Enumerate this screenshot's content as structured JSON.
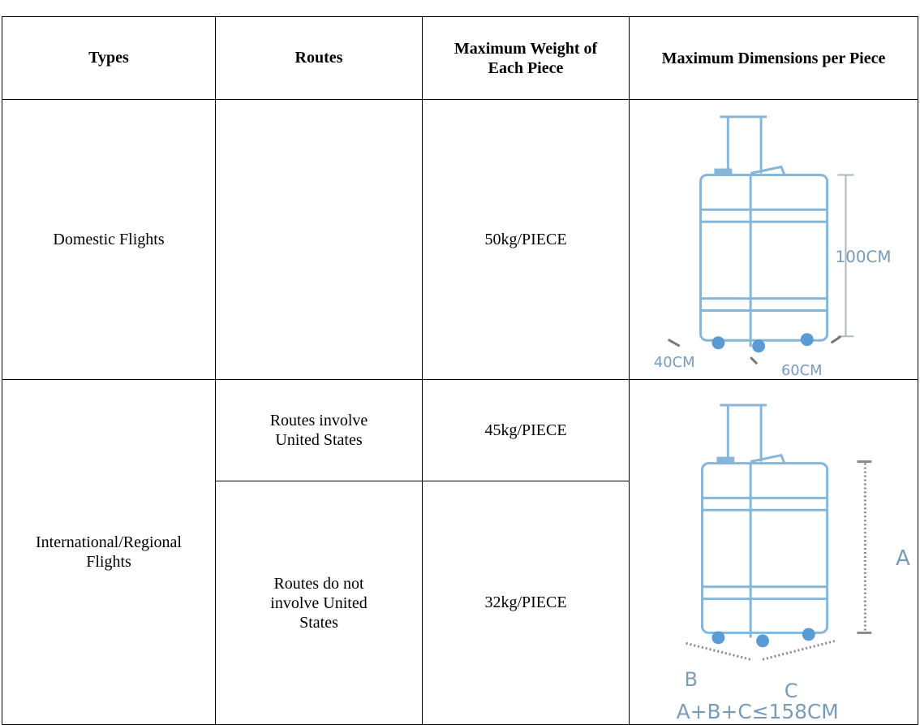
{
  "table": {
    "headers": [
      "Types",
      "Routes",
      "Maximum Weight of Each Piece",
      "Maximum Dimensions per Piece"
    ],
    "domestic": {
      "type": "Domestic Flights",
      "weight": "50kg/PIECE",
      "figure": {
        "height": "100CM",
        "depth": "40CM",
        "width": "60CM"
      }
    },
    "international": {
      "type": "International/Regional Flights",
      "routes": [
        {
          "route": "Routes involve United States",
          "weight": "45kg/PIECE"
        },
        {
          "route": "Routes do not involve United States",
          "weight": "32kg/PIECE"
        }
      ],
      "figure": {
        "a": "A",
        "b": "B",
        "c": "C",
        "rule": "A+B+C≤158CM"
      }
    }
  }
}
